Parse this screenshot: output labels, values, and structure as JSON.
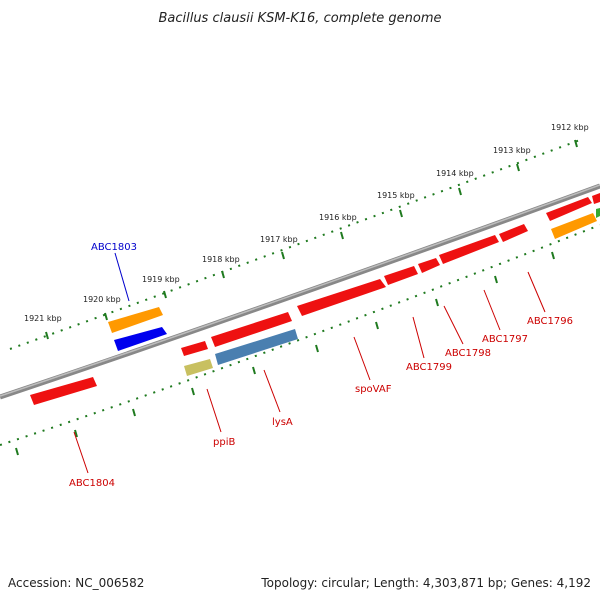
{
  "title": "Bacillus clausii KSM-K16, complete genome",
  "footer": {
    "accession": "Accession: NC_006582",
    "summary": "Topology: circular; Length: 4,303,871 bp; Genes: 4,192"
  },
  "colors": {
    "backbone": "#7a7a7a",
    "tick": "#1f7a1f",
    "red_gene": "#ee1111",
    "orange_gene": "#ff9900",
    "blue_gene": "#0000ee",
    "steel_gene": "#4a7fb0",
    "olive_gene": "#c8c060",
    "green_gene": "#33aa33",
    "label_red": "#cc0000",
    "label_blue": "#0000cc"
  },
  "kbp_labels": [
    "1912 kbp",
    "1913 kbp",
    "1914 kbp",
    "1915 kbp",
    "1916 kbp",
    "1917 kbp",
    "1918 kbp",
    "1919 kbp",
    "1920 kbp",
    "1921 kbp"
  ],
  "gene_labels": [
    {
      "text": "ABC1803",
      "color": "label_blue"
    },
    {
      "text": "ABC1796",
      "color": "label_red"
    },
    {
      "text": "ABC1797",
      "color": "label_red"
    },
    {
      "text": "ABC1798",
      "color": "label_red"
    },
    {
      "text": "ABC1799",
      "color": "label_red"
    },
    {
      "text": "spoVAF",
      "color": "label_red"
    },
    {
      "text": "lysA",
      "color": "label_red"
    },
    {
      "text": "ppiB",
      "color": "label_red"
    },
    {
      "text": "ABC1804",
      "color": "label_red"
    }
  ]
}
